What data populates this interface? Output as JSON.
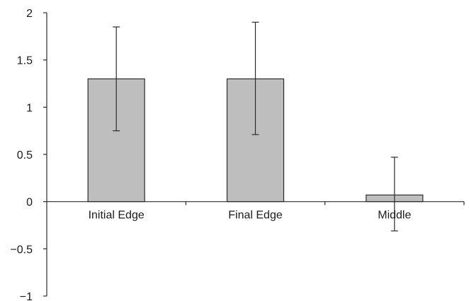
{
  "chart_data": {
    "type": "bar",
    "title": "",
    "xlabel": "",
    "ylabel": "",
    "categories": [
      "Initial Edge",
      "Final Edge",
      "Middle"
    ],
    "values": [
      1.3,
      1.3,
      0.07
    ],
    "error_low": [
      0.75,
      0.71,
      -0.31
    ],
    "error_high": [
      1.85,
      1.9,
      0.47
    ],
    "ylim": [
      -1,
      2
    ],
    "yticks": [
      -1,
      -0.5,
      0,
      0.5,
      1,
      1.5,
      2
    ],
    "ytick_labels": [
      "−1",
      "−0.5",
      "0",
      "0.5",
      "1",
      "1.5",
      "2"
    ],
    "grid": false,
    "legend": "none",
    "colors": {
      "bar_fill": "#bebebe",
      "bar_stroke": "#2b2b2b",
      "axis": "#2b2b2b",
      "error_bar": "#2b2b2b"
    }
  }
}
